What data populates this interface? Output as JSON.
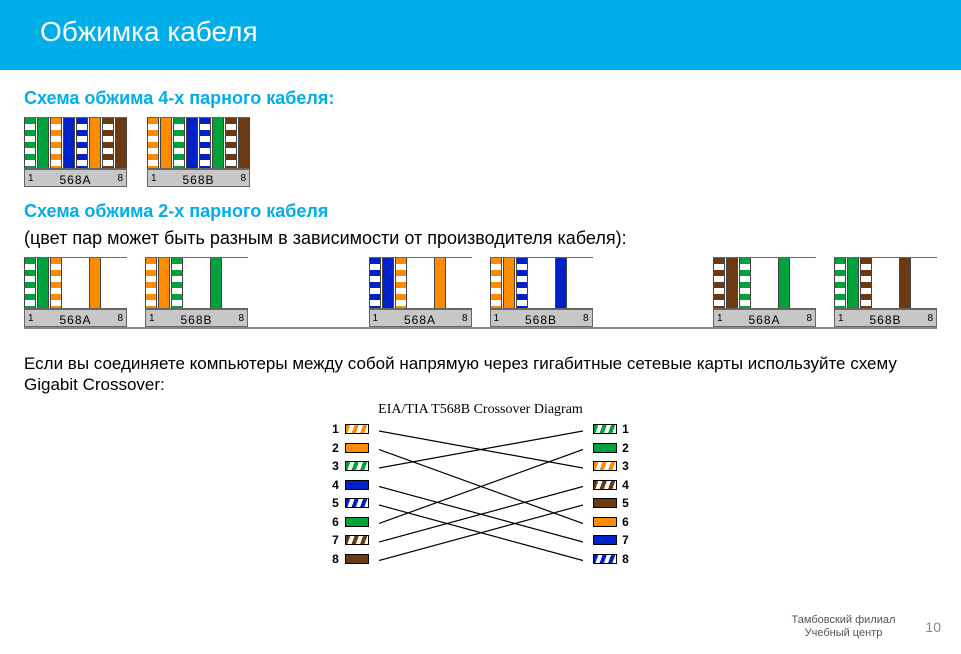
{
  "colors": {
    "accent": "#00aee9",
    "orange": "#ff8c00",
    "green": "#00a23c",
    "blue": "#0020c8",
    "brown": "#6b3a12",
    "white": "#ffffff",
    "grey_base": "#c7c7c7"
  },
  "title": "Обжимка кабеля",
  "section1_heading": "Схема обжима 4-х парного кабеля:",
  "section2_heading": "Схема обжима 2-х парного кабеля",
  "section2_sub": "(цвет пар может быть разным в зависимости от производителя кабеля):",
  "paragraph": "Если вы соединяете компьютеры между собой напрямую через гигабитные сетевые карты используйте схему Gigabit Crossover:",
  "crossover_title": "EIA/TIA T568B Crossover Diagram",
  "footer_branch_line1": "Тамбовский филиал",
  "footer_branch_line2": "Учебный центр",
  "page_number": "10",
  "connectors_4pair": [
    {
      "label": "568A",
      "pin_start": "1",
      "pin_end": "8",
      "wires": [
        {
          "c": "#00a23c",
          "striped": true
        },
        {
          "c": "#00a23c",
          "striped": false
        },
        {
          "c": "#ff8c00",
          "striped": true
        },
        {
          "c": "#0020c8",
          "striped": false
        },
        {
          "c": "#0020c8",
          "striped": true
        },
        {
          "c": "#ff8c00",
          "striped": false
        },
        {
          "c": "#6b3a12",
          "striped": true
        },
        {
          "c": "#6b3a12",
          "striped": false
        }
      ]
    },
    {
      "label": "568B",
      "pin_start": "1",
      "pin_end": "8",
      "wires": [
        {
          "c": "#ff8c00",
          "striped": true
        },
        {
          "c": "#ff8c00",
          "striped": false
        },
        {
          "c": "#00a23c",
          "striped": true
        },
        {
          "c": "#0020c8",
          "striped": false
        },
        {
          "c": "#0020c8",
          "striped": true
        },
        {
          "c": "#00a23c",
          "striped": false
        },
        {
          "c": "#6b3a12",
          "striped": true
        },
        {
          "c": "#6b3a12",
          "striped": false
        }
      ]
    }
  ],
  "connectors_2pair": [
    {
      "label": "568A",
      "pin_start": "1",
      "pin_end": "8",
      "wires": [
        {
          "c": "#00a23c",
          "striped": true
        },
        {
          "c": "#00a23c",
          "striped": false
        },
        {
          "c": "#ff8c00",
          "striped": true
        },
        null,
        null,
        {
          "c": "#ff8c00",
          "striped": false
        },
        null,
        null
      ]
    },
    {
      "label": "568B",
      "pin_start": "1",
      "pin_end": "8",
      "wires": [
        {
          "c": "#ff8c00",
          "striped": true
        },
        {
          "c": "#ff8c00",
          "striped": false
        },
        {
          "c": "#00a23c",
          "striped": true
        },
        null,
        null,
        {
          "c": "#00a23c",
          "striped": false
        },
        null,
        null
      ]
    },
    {
      "label": "568A",
      "pin_start": "1",
      "pin_end": "8",
      "wires": [
        {
          "c": "#0020c8",
          "striped": true
        },
        {
          "c": "#0020c8",
          "striped": false
        },
        {
          "c": "#ff8c00",
          "striped": true
        },
        null,
        null,
        {
          "c": "#ff8c00",
          "striped": false
        },
        null,
        null
      ]
    },
    {
      "label": "568B",
      "pin_start": "1",
      "pin_end": "8",
      "wires": [
        {
          "c": "#ff8c00",
          "striped": true
        },
        {
          "c": "#ff8c00",
          "striped": false
        },
        {
          "c": "#0020c8",
          "striped": true
        },
        null,
        null,
        {
          "c": "#0020c8",
          "striped": false
        },
        null,
        null
      ]
    },
    {
      "label": "568A",
      "pin_start": "1",
      "pin_end": "8",
      "wires": [
        {
          "c": "#6b3a12",
          "striped": true
        },
        {
          "c": "#6b3a12",
          "striped": false
        },
        {
          "c": "#00a23c",
          "striped": true
        },
        null,
        null,
        {
          "c": "#00a23c",
          "striped": false
        },
        null,
        null
      ]
    },
    {
      "label": "568B",
      "pin_start": "1",
      "pin_end": "8",
      "wires": [
        {
          "c": "#00a23c",
          "striped": true
        },
        {
          "c": "#00a23c",
          "striped": false
        },
        {
          "c": "#6b3a12",
          "striped": true
        },
        null,
        null,
        {
          "c": "#6b3a12",
          "striped": false
        },
        null,
        null
      ]
    }
  ],
  "crossover": {
    "left": [
      {
        "n": "1",
        "c": "#ff8c00",
        "striped": true
      },
      {
        "n": "2",
        "c": "#ff8c00",
        "striped": false
      },
      {
        "n": "3",
        "c": "#00a23c",
        "striped": true
      },
      {
        "n": "4",
        "c": "#0020c8",
        "striped": false
      },
      {
        "n": "5",
        "c": "#0020c8",
        "striped": true
      },
      {
        "n": "6",
        "c": "#00a23c",
        "striped": false
      },
      {
        "n": "7",
        "c": "#6b3a12",
        "striped": true
      },
      {
        "n": "8",
        "c": "#6b3a12",
        "striped": false
      }
    ],
    "right": [
      {
        "n": "1",
        "c": "#00a23c",
        "striped": true
      },
      {
        "n": "2",
        "c": "#00a23c",
        "striped": false
      },
      {
        "n": "3",
        "c": "#ff8c00",
        "striped": true
      },
      {
        "n": "4",
        "c": "#6b3a12",
        "striped": true
      },
      {
        "n": "5",
        "c": "#6b3a12",
        "striped": false
      },
      {
        "n": "6",
        "c": "#ff8c00",
        "striped": false
      },
      {
        "n": "7",
        "c": "#0020c8",
        "striped": false
      },
      {
        "n": "8",
        "c": "#0020c8",
        "striped": true
      }
    ],
    "map": [
      [
        1,
        3
      ],
      [
        2,
        6
      ],
      [
        3,
        1
      ],
      [
        4,
        7
      ],
      [
        5,
        8
      ],
      [
        6,
        2
      ],
      [
        7,
        4
      ],
      [
        8,
        5
      ]
    ],
    "line_color": "#000000",
    "line_width": 1.2
  }
}
